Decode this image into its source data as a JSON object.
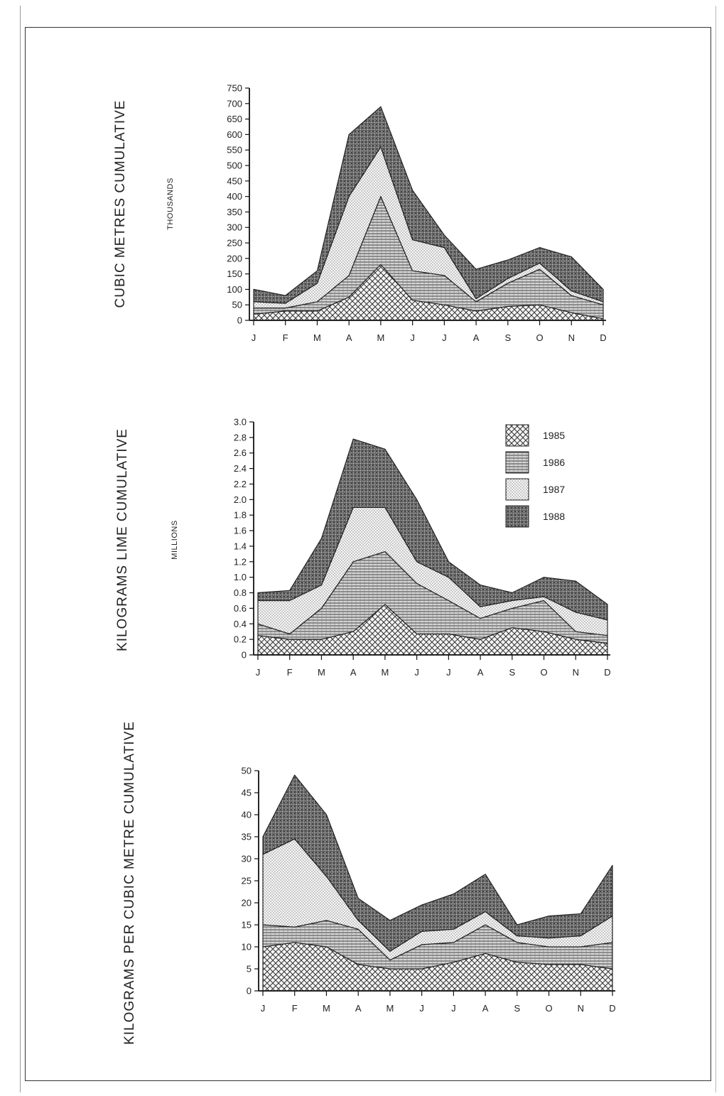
{
  "legend": [
    "1985",
    "1986",
    "1987",
    "1988"
  ],
  "chart_data": [
    {
      "type": "area",
      "stacked": true,
      "ylabel": "CUBIC METRES CUMULATIVE",
      "unit": "THOUSANDS",
      "categories": [
        "J",
        "F",
        "M",
        "A",
        "M",
        "J",
        "J",
        "A",
        "S",
        "O",
        "N",
        "D"
      ],
      "ylim": [
        0,
        750
      ],
      "yticks": [
        0,
        50,
        100,
        150,
        200,
        250,
        300,
        350,
        400,
        450,
        500,
        550,
        600,
        650,
        700,
        750
      ],
      "series": [
        {
          "name": "1985",
          "pattern": "cross",
          "values": [
            20,
            30,
            30,
            75,
            180,
            65,
            50,
            30,
            45,
            50,
            25,
            5
          ]
        },
        {
          "name": "1986",
          "pattern": "hlines",
          "values": [
            20,
            10,
            30,
            70,
            220,
            95,
            95,
            30,
            75,
            115,
            55,
            45
          ]
        },
        {
          "name": "1987",
          "pattern": "dots",
          "values": [
            20,
            15,
            60,
            255,
            160,
            100,
            90,
            10,
            15,
            20,
            15,
            10
          ]
        },
        {
          "name": "1988",
          "pattern": "dense",
          "values": [
            40,
            25,
            40,
            200,
            130,
            160,
            40,
            95,
            60,
            50,
            110,
            40
          ]
        }
      ]
    },
    {
      "type": "area",
      "stacked": true,
      "ylabel": "KILOGRAMS LIME CUMULATIVE",
      "unit": "MILLIONS",
      "categories": [
        "J",
        "F",
        "M",
        "A",
        "M",
        "J",
        "J",
        "A",
        "S",
        "O",
        "N",
        "D"
      ],
      "ylim": [
        0,
        3.0
      ],
      "yticks": [
        "0",
        "0.2",
        "0.4",
        "0.6",
        "0.8",
        "1.0",
        "1.2",
        "1.4",
        "1.6",
        "1.8",
        "2.0",
        "2.2",
        "2.4",
        "2.6",
        "2.8",
        "3.0"
      ],
      "series": [
        {
          "name": "1985",
          "pattern": "cross",
          "values": [
            0.25,
            0.2,
            0.2,
            0.3,
            0.65,
            0.27,
            0.27,
            0.2,
            0.35,
            0.3,
            0.2,
            0.15
          ]
        },
        {
          "name": "1986",
          "pattern": "hlines",
          "values": [
            0.15,
            0.07,
            0.4,
            0.9,
            0.68,
            0.65,
            0.43,
            0.27,
            0.25,
            0.4,
            0.1,
            0.1
          ]
        },
        {
          "name": "1987",
          "pattern": "dots",
          "values": [
            0.3,
            0.43,
            0.3,
            0.7,
            0.57,
            0.28,
            0.3,
            0.15,
            0.1,
            0.05,
            0.25,
            0.2
          ]
        },
        {
          "name": "1988",
          "pattern": "dense",
          "values": [
            0.1,
            0.13,
            0.6,
            0.88,
            0.75,
            0.8,
            0.2,
            0.28,
            0.1,
            0.25,
            0.4,
            0.2
          ]
        }
      ]
    },
    {
      "type": "area",
      "stacked": true,
      "ylabel": "KILOGRAMS PER CUBIC METRE CUMULATIVE",
      "unit": "",
      "categories": [
        "J",
        "F",
        "M",
        "A",
        "M",
        "J",
        "J",
        "A",
        "S",
        "O",
        "N",
        "D"
      ],
      "ylim": [
        0,
        50
      ],
      "yticks": [
        0,
        5,
        10,
        15,
        20,
        25,
        30,
        35,
        40,
        45,
        50
      ],
      "series": [
        {
          "name": "1985",
          "pattern": "cross",
          "values": [
            10,
            11,
            10,
            6,
            5,
            5,
            6.5,
            8.5,
            6.5,
            6,
            6,
            5
          ]
        },
        {
          "name": "1986",
          "pattern": "hlines",
          "values": [
            5,
            3.5,
            6,
            8,
            2,
            5.5,
            4.5,
            6.5,
            4.5,
            4,
            4,
            6
          ]
        },
        {
          "name": "1987",
          "pattern": "dots",
          "values": [
            16,
            20,
            10,
            2,
            2,
            3,
            3,
            3,
            1.5,
            2,
            2.5,
            6
          ]
        },
        {
          "name": "1988",
          "pattern": "dense",
          "values": [
            4,
            14.5,
            14,
            5,
            7,
            6,
            8,
            8.5,
            2.5,
            5,
            5,
            11.5
          ]
        }
      ]
    }
  ]
}
